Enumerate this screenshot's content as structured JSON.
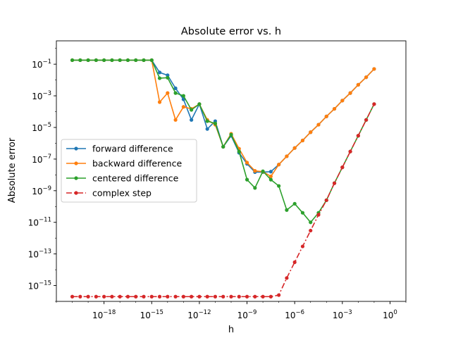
{
  "chart_data": {
    "type": "line",
    "title": "Absolute error vs. h",
    "xlabel": "h",
    "ylabel": "Absolute error",
    "xscale": "log",
    "yscale": "log",
    "xlim": [
      1e-21,
      10
    ],
    "ylim": [
      1e-16,
      3
    ],
    "grid": false,
    "legend_position": "center-left",
    "x_ticks": [
      {
        "value": 1e-18,
        "base": "10",
        "exp": "−18"
      },
      {
        "value": 1e-15,
        "base": "10",
        "exp": "−15"
      },
      {
        "value": 1e-12,
        "base": "10",
        "exp": "−12"
      },
      {
        "value": 1e-09,
        "base": "10",
        "exp": "−9"
      },
      {
        "value": 1e-06,
        "base": "10",
        "exp": "−6"
      },
      {
        "value": 0.001,
        "base": "10",
        "exp": "−3"
      },
      {
        "value": 1,
        "base": "10",
        "exp": "0"
      }
    ],
    "y_ticks": [
      {
        "value": 1e-15,
        "base": "10",
        "exp": "−15"
      },
      {
        "value": 1e-13,
        "base": "10",
        "exp": "−13"
      },
      {
        "value": 1e-11,
        "base": "10",
        "exp": "−11"
      },
      {
        "value": 1e-09,
        "base": "10",
        "exp": "−9"
      },
      {
        "value": 1e-07,
        "base": "10",
        "exp": "−7"
      },
      {
        "value": 1e-05,
        "base": "10",
        "exp": "−5"
      },
      {
        "value": 0.001,
        "base": "10",
        "exp": "−3"
      },
      {
        "value": 0.1,
        "base": "10",
        "exp": "−1"
      }
    ],
    "x": [
      1e-20,
      3.16e-20,
      1e-19,
      3.16e-19,
      1e-18,
      3.16e-18,
      1e-17,
      3.16e-17,
      1e-16,
      3.16e-16,
      1e-15,
      3.16e-15,
      1e-14,
      3.16e-14,
      1e-13,
      3.16e-13,
      1e-12,
      3.16e-12,
      1e-11,
      3.16e-11,
      1e-10,
      3.16e-10,
      1e-09,
      3.16e-09,
      1e-08,
      3.16e-08,
      1e-07,
      3.16e-07,
      1e-06,
      3.16e-06,
      1e-05,
      3.16e-05,
      0.0001,
      0.000316,
      0.001,
      0.00316,
      0.01,
      0.0316,
      0.1
    ],
    "series": [
      {
        "name": "forward difference",
        "color": "#1f77b4",
        "linestyle": "solid",
        "values": [
          0.18,
          0.18,
          0.18,
          0.18,
          0.18,
          0.18,
          0.18,
          0.18,
          0.18,
          0.18,
          0.18,
          0.03,
          0.02,
          0.003,
          0.0006,
          3e-05,
          0.0003,
          8e-06,
          2.5e-05,
          6e-07,
          3e-06,
          2.5e-07,
          5e-08,
          1.5e-08,
          1.5e-08,
          1.6e-08,
          4.5e-08,
          1.5e-07,
          5e-07,
          1.5e-06,
          5e-06,
          1.5e-05,
          5e-05,
          0.00015,
          0.0005,
          0.0015,
          0.005,
          0.015,
          0.05
        ]
      },
      {
        "name": "backward difference",
        "color": "#ff7f0e",
        "linestyle": "solid",
        "values": [
          0.18,
          0.18,
          0.18,
          0.18,
          0.18,
          0.18,
          0.18,
          0.18,
          0.18,
          0.18,
          0.18,
          0.0004,
          0.0015,
          3e-05,
          0.0002,
          0.00015,
          0.0003,
          3e-05,
          1.5e-05,
          6e-07,
          4e-06,
          4.5e-07,
          6e-08,
          1.8e-08,
          1.6e-08,
          8e-09,
          4.5e-08,
          1.5e-07,
          5e-07,
          1.5e-06,
          5e-06,
          1.5e-05,
          5e-05,
          0.00015,
          0.0005,
          0.0015,
          0.005,
          0.015,
          0.05
        ]
      },
      {
        "name": "centered difference",
        "color": "#2ca02c",
        "linestyle": "solid",
        "values": [
          0.18,
          0.18,
          0.18,
          0.18,
          0.18,
          0.18,
          0.18,
          0.18,
          0.18,
          0.18,
          0.18,
          0.013,
          0.014,
          0.0015,
          0.001,
          0.00013,
          0.0003,
          2.5e-05,
          1.8e-05,
          6e-07,
          3.5e-06,
          3e-07,
          5e-09,
          1.5e-09,
          1.7e-08,
          5e-09,
          2e-09,
          6e-11,
          1.5e-10,
          4e-11,
          1e-11,
          4e-11,
          2.5e-10,
          3e-09,
          3e-08,
          3e-07,
          3e-06,
          3e-05,
          0.0003
        ]
      },
      {
        "name": "complex step",
        "color": "#d62728",
        "linestyle": "dashdot",
        "values": [
          2e-16,
          2e-16,
          2e-16,
          2e-16,
          2e-16,
          2e-16,
          2e-16,
          2e-16,
          2e-16,
          2e-16,
          2e-16,
          2e-16,
          2e-16,
          2e-16,
          2e-16,
          2e-16,
          2e-16,
          2e-16,
          2e-16,
          2e-16,
          2e-16,
          2e-16,
          2e-16,
          2e-16,
          2e-16,
          2e-16,
          2.5e-16,
          3e-15,
          3e-14,
          3e-13,
          3e-12,
          3e-11,
          2.5e-10,
          3e-09,
          3e-08,
          3e-07,
          3e-06,
          3e-05,
          0.0003
        ]
      }
    ]
  }
}
